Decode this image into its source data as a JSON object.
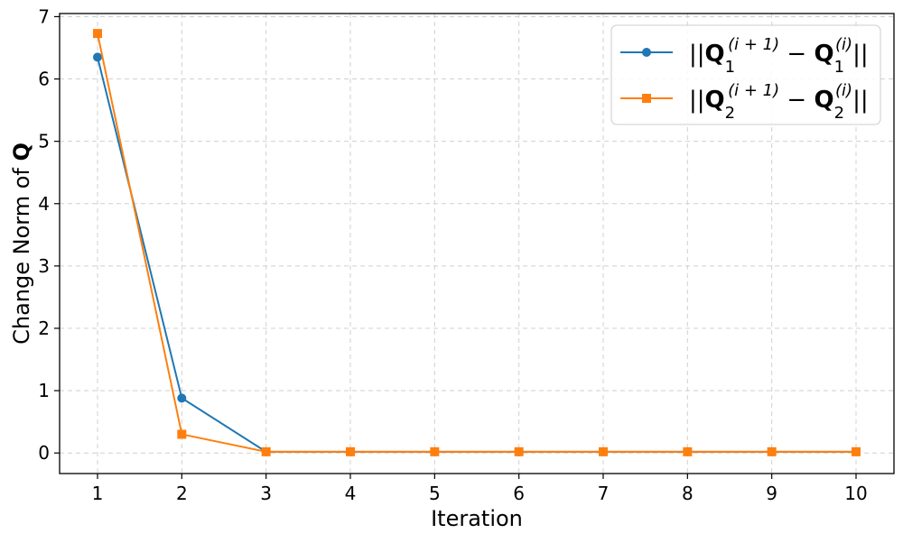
{
  "chart_data": {
    "type": "line",
    "title": "",
    "xlabel": "Iteration",
    "ylabel": {
      "prefix": "Change Norm of ",
      "symbol": "Q"
    },
    "x": [
      1,
      2,
      3,
      4,
      5,
      6,
      7,
      8,
      9,
      10
    ],
    "xticks": [
      "1",
      "2",
      "3",
      "4",
      "5",
      "6",
      "7",
      "8",
      "9",
      "10"
    ],
    "yticks": [
      "0",
      "1",
      "2",
      "3",
      "4",
      "5",
      "6",
      "7"
    ],
    "xlim": [
      0.55,
      10.45
    ],
    "ylim": [
      -0.33,
      7.05
    ],
    "grid": true,
    "legend_position": "top-right",
    "series": [
      {
        "name": "||Q1(i+1) - Q1(i)||",
        "legend": {
          "index": "1"
        },
        "marker": "circle",
        "color": "#1f77b4",
        "values": [
          6.35,
          0.88,
          0.02,
          0.02,
          0.02,
          0.02,
          0.02,
          0.02,
          0.02,
          0.02
        ]
      },
      {
        "name": "||Q2(i+1) - Q2(i)||",
        "legend": {
          "index": "2"
        },
        "marker": "square",
        "color": "#ff7f0e",
        "values": [
          6.73,
          0.3,
          0.02,
          0.02,
          0.02,
          0.02,
          0.02,
          0.02,
          0.02,
          0.02
        ]
      }
    ],
    "legend_labels": {
      "bars": "||",
      "Q": "Q",
      "sup_next": "(i + 1)",
      "sup_cur": "(i)",
      "minus": "−"
    }
  }
}
